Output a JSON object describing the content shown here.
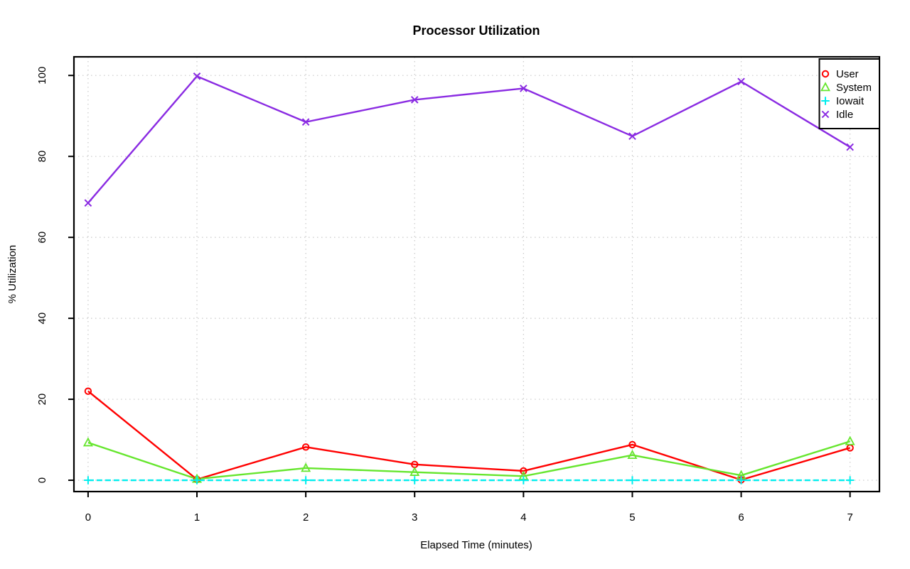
{
  "chart_data": {
    "type": "line",
    "title": "Processor Utilization",
    "xlabel": "Elapsed Time (minutes)",
    "ylabel": "% Utilization",
    "x": [
      0,
      1,
      2,
      3,
      4,
      5,
      6,
      7
    ],
    "x_tick_labels": [
      "0",
      "1",
      "2",
      "3",
      "4",
      "5",
      "6",
      "7"
    ],
    "y_ticks": [
      0,
      20,
      40,
      60,
      80,
      100
    ],
    "y_tick_labels": [
      "0",
      "20",
      "40",
      "60",
      "80",
      "100"
    ],
    "xlim": [
      -0.13,
      7.27
    ],
    "ylim": [
      -2.8,
      104.6
    ],
    "grid": "dotted",
    "grid_color": "#c9c9c9",
    "legend_position": "top-right",
    "series": [
      {
        "name": "User",
        "color": "#ff0000",
        "marker": "circle",
        "line": "solid",
        "values": [
          22.0,
          0.2,
          8.2,
          3.9,
          2.3,
          8.8,
          0.1,
          8.0
        ]
      },
      {
        "name": "System",
        "color": "#66e62e",
        "marker": "triangle",
        "line": "solid",
        "values": [
          9.3,
          0.3,
          3.0,
          2.0,
          1.0,
          6.2,
          1.2,
          9.6
        ]
      },
      {
        "name": "Iowait",
        "color": "#00eeee",
        "marker": "plus",
        "line": "dashed",
        "values": [
          0,
          0,
          0,
          0,
          0,
          0,
          0,
          0
        ]
      },
      {
        "name": "Idle",
        "color": "#8a2be2",
        "marker": "x",
        "line": "solid",
        "values": [
          68.5,
          99.8,
          88.5,
          94.0,
          96.8,
          85.0,
          98.5,
          82.3
        ]
      }
    ]
  }
}
